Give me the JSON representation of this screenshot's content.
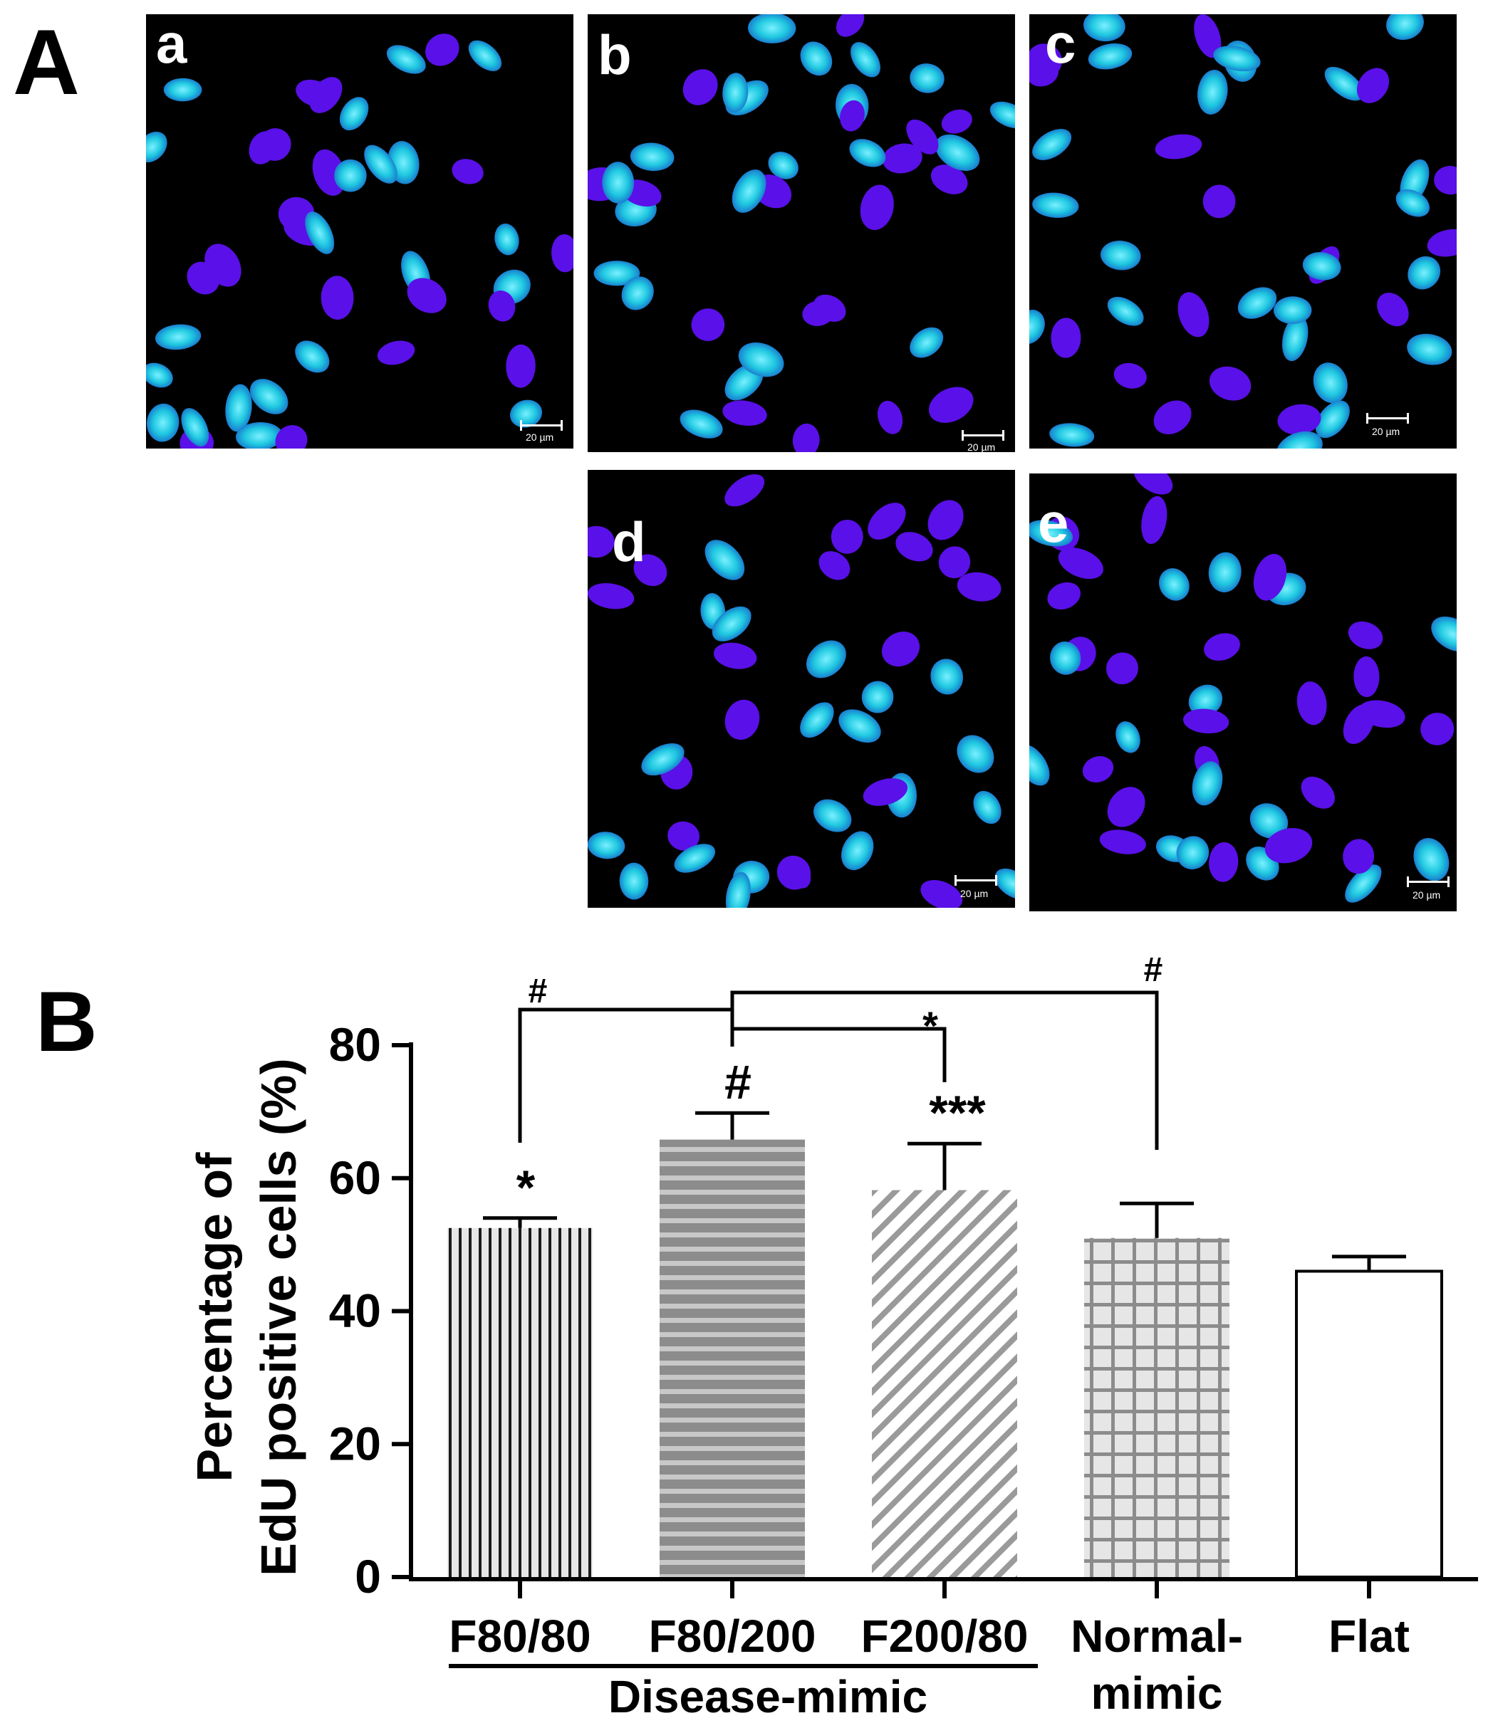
{
  "panel_A": {
    "label": "A",
    "images": [
      {
        "label": "a",
        "scale_bar": "20 µm"
      },
      {
        "label": "b",
        "scale_bar": "20 µm"
      },
      {
        "label": "c",
        "scale_bar": "20 µm"
      },
      {
        "label": "d",
        "scale_bar": "20 µm"
      },
      {
        "label": "e",
        "scale_bar": "20 µm"
      }
    ]
  },
  "panel_B": {
    "label": "B"
  },
  "colors": {
    "image_background": "#000000",
    "nucleus_dapi": "#5a10e8",
    "nucleus_edu": "#1fc8e0",
    "bar_light": "#e6e6e6",
    "bar_mid": "#8c8c8c",
    "bar_dark": "#6f6f6f",
    "bar_empty": "#ffffff"
  },
  "chart_data": {
    "type": "bar",
    "ylabel_lines": [
      "Percentage of",
      "EdU positive cells  (%)"
    ],
    "ylim": [
      0,
      80
    ],
    "yticks": [
      0,
      20,
      40,
      60,
      80
    ],
    "categories": [
      "F80/80",
      "F80/200",
      "F200/80",
      "Normal-",
      "Flat"
    ],
    "category_second_line": [
      "",
      "",
      "",
      "mimic",
      ""
    ],
    "group_label": "Disease-mimic",
    "values": [
      52.5,
      65.8,
      58.2,
      51.0,
      46.0
    ],
    "errors": [
      1.5,
      4.0,
      7.0,
      5.2,
      2.2
    ],
    "patterns": [
      "vertical-lines",
      "horizontal-stripes",
      "diagonal-lines",
      "grid",
      "none"
    ],
    "bar_significance": [
      "*",
      "#",
      "***",
      "",
      ""
    ],
    "comparisons": [
      {
        "from": "F80/80",
        "to": "F80/200",
        "label": "#"
      },
      {
        "from": "F80/200",
        "to": "F200/80",
        "label": "*"
      },
      {
        "from": "F80/200",
        "to": "Normal-",
        "label": "#"
      }
    ],
    "grid": false,
    "legend": "none"
  }
}
